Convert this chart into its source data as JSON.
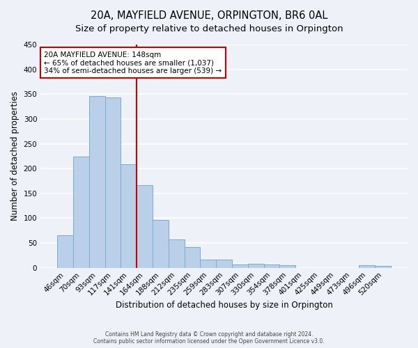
{
  "title": "20A, MAYFIELD AVENUE, ORPINGTON, BR6 0AL",
  "subtitle": "Size of property relative to detached houses in Orpington",
  "xlabel": "Distribution of detached houses by size in Orpington",
  "ylabel": "Number of detached properties",
  "bar_labels": [
    "46sqm",
    "70sqm",
    "93sqm",
    "117sqm",
    "141sqm",
    "164sqm",
    "188sqm",
    "212sqm",
    "235sqm",
    "259sqm",
    "283sqm",
    "307sqm",
    "330sqm",
    "354sqm",
    "378sqm",
    "401sqm",
    "425sqm",
    "449sqm",
    "473sqm",
    "496sqm",
    "520sqm"
  ],
  "bar_heights": [
    66,
    224,
    346,
    344,
    209,
    167,
    97,
    57,
    42,
    16,
    16,
    6,
    8,
    6,
    5,
    0,
    0,
    0,
    0,
    5,
    4
  ],
  "bar_color": "#bad0e8",
  "bar_edge_color": "#7aaace",
  "vline_color": "#cc0000",
  "ylim": [
    0,
    450
  ],
  "yticks": [
    0,
    50,
    100,
    150,
    200,
    250,
    300,
    350,
    400,
    450
  ],
  "annotation_title": "20A MAYFIELD AVENUE: 148sqm",
  "annotation_line1": "← 65% of detached houses are smaller (1,037)",
  "annotation_line2": "34% of semi-detached houses are larger (539) →",
  "annotation_box_color": "#ffffff",
  "annotation_box_edge": "#cc0000",
  "footer1": "Contains HM Land Registry data © Crown copyright and database right 2024.",
  "footer2": "Contains public sector information licensed under the Open Government Licence v3.0.",
  "bg_color": "#eef2f8",
  "grid_color": "#ffffff",
  "title_fontsize": 10.5,
  "subtitle_fontsize": 9.5,
  "xlabel_fontsize": 8.5,
  "ylabel_fontsize": 8.5,
  "tick_fontsize": 7.5,
  "annot_fontsize": 7.5,
  "footer_fontsize": 5.5
}
